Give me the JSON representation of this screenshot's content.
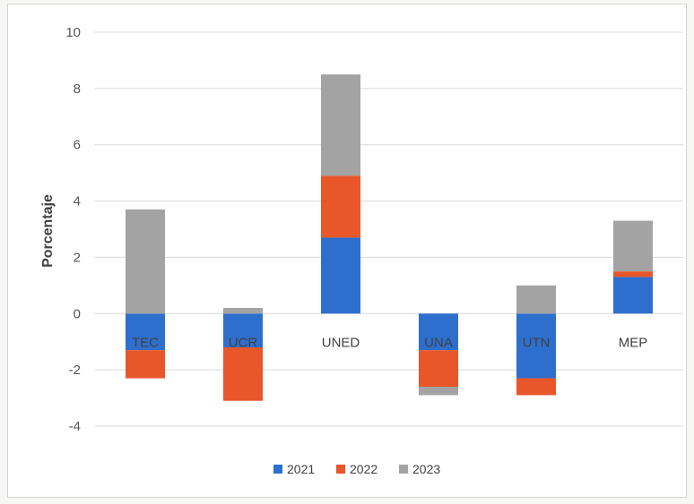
{
  "chart_data": {
    "type": "bar",
    "stacked": true,
    "title": "",
    "xlabel": "",
    "ylabel": "Porcentaje",
    "ylim": [
      -4,
      10
    ],
    "yticks": [
      10,
      8,
      6,
      4,
      2,
      0,
      -2,
      -4
    ],
    "ytick_labels": [
      "10",
      "8",
      "6",
      "4",
      "2",
      "0",
      "-2",
      "-4"
    ],
    "grid": true,
    "legend_position": "bottom",
    "categories": [
      "TEC",
      "UCR",
      "UNED",
      "UNA",
      "UTN",
      "MEP"
    ],
    "series": [
      {
        "name": "2021",
        "color": "#2e6fce",
        "values": [
          -1.3,
          -1.2,
          2.7,
          -1.3,
          -2.3,
          1.3
        ]
      },
      {
        "name": "2022",
        "color": "#e8562a",
        "values": [
          -1.0,
          -1.9,
          2.2,
          -1.3,
          -0.6,
          0.2
        ]
      },
      {
        "name": "2023",
        "color": "#a3a3a3",
        "values": [
          3.7,
          0.2,
          3.6,
          -0.3,
          1.0,
          1.8
        ]
      }
    ]
  }
}
